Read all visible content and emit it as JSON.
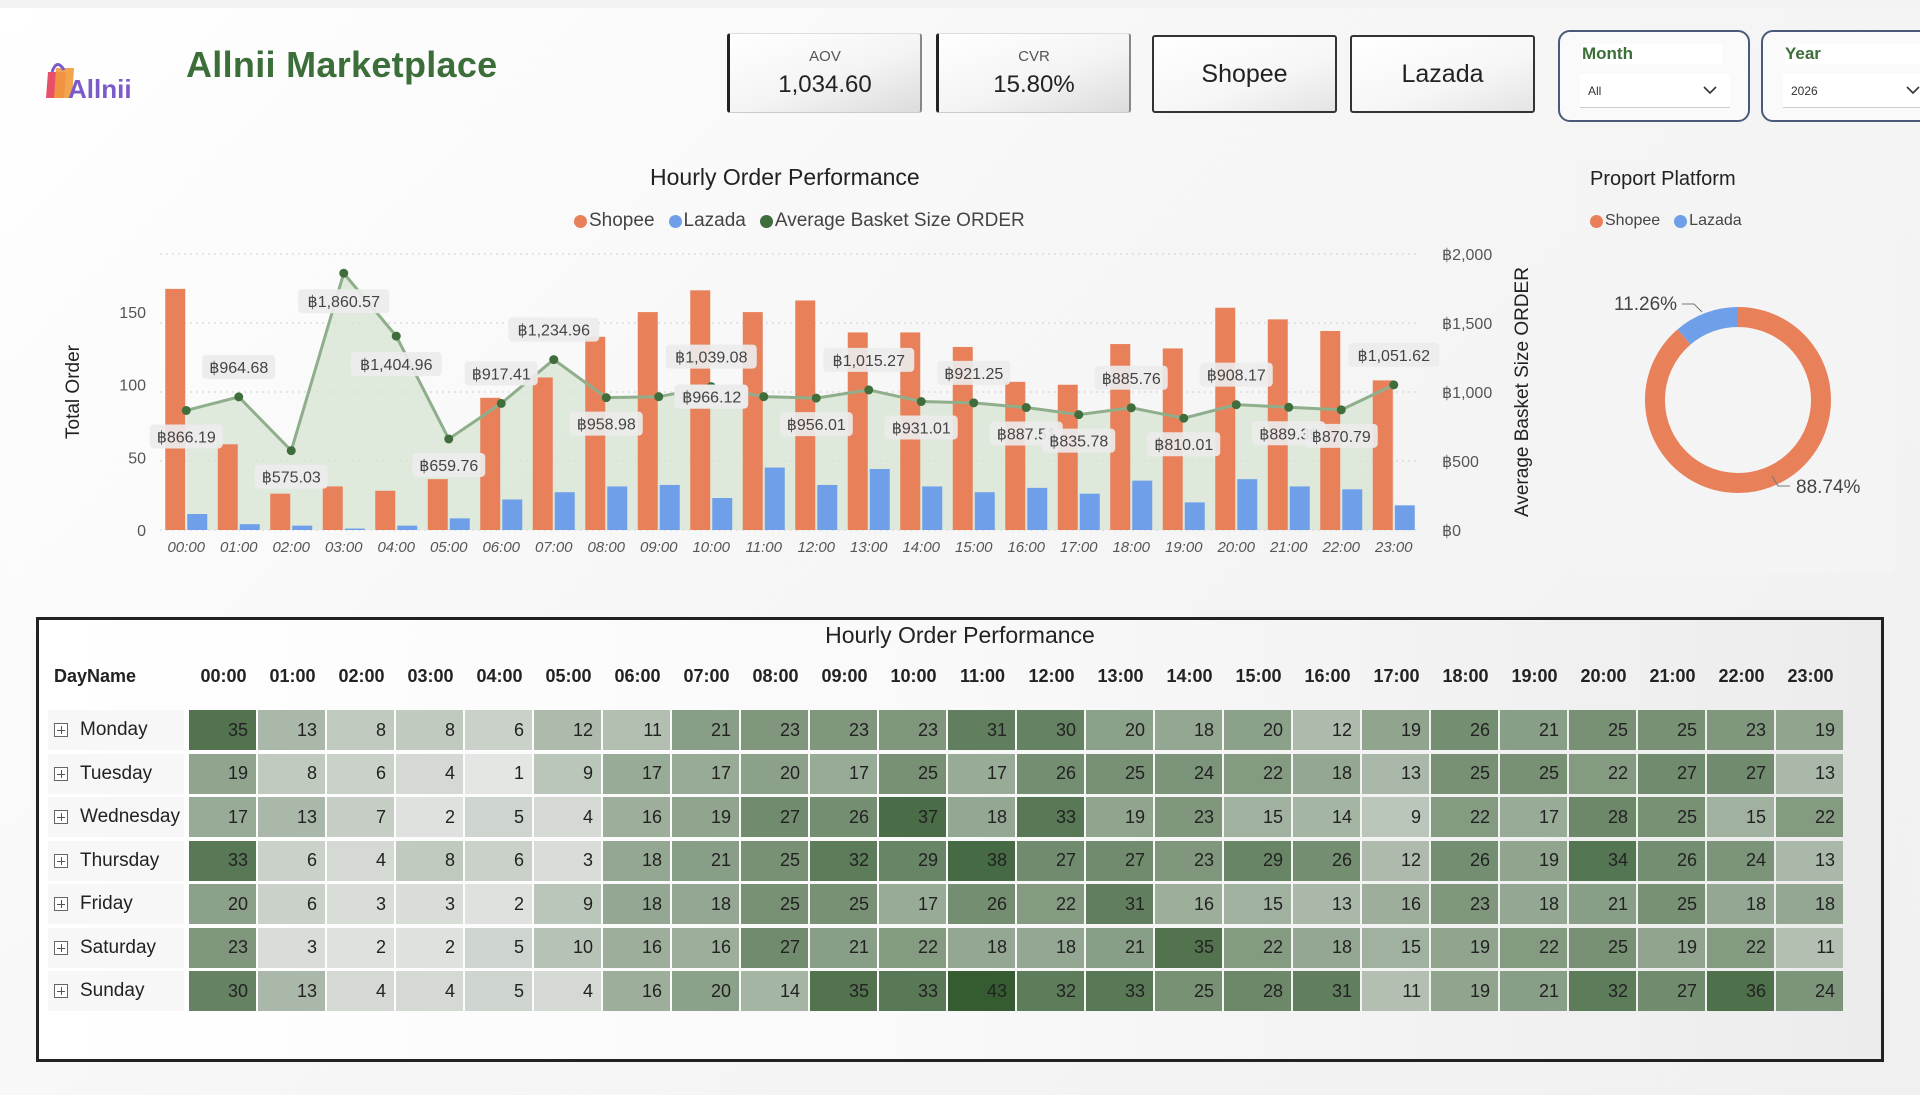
{
  "app": {
    "title": "Allnii Marketplace",
    "logo_text": "Allnii"
  },
  "kpis": [
    {
      "label": "AOV",
      "value": "1,034.60"
    },
    {
      "label": "CVR",
      "value": "15.80%"
    }
  ],
  "platform_buttons": [
    "Shopee",
    "Lazada"
  ],
  "slicers": [
    {
      "title": "Month",
      "value": "All"
    },
    {
      "title": "Year",
      "value": "2026"
    }
  ],
  "colors": {
    "shopee": "#E8805A",
    "lazada": "#6F9FE8",
    "basket": "#3F6E3C",
    "area": "#D6E4D2",
    "title_green": "#3C6E3A"
  },
  "combo_chart": {
    "title": "Hourly Order Performance",
    "legend": [
      "Shopee",
      "Lazada",
      "Average Basket Size ORDER"
    ]
  },
  "donut_chart": {
    "title": "Proport Platform",
    "legend": [
      "Shopee",
      "Lazada"
    ]
  },
  "matrix": {
    "title": "Hourly Order Performance",
    "row_header": "DayName",
    "columns": [
      "00:00",
      "01:00",
      "02:00",
      "03:00",
      "04:00",
      "05:00",
      "06:00",
      "07:00",
      "08:00",
      "09:00",
      "10:00",
      "11:00",
      "12:00",
      "13:00",
      "14:00",
      "15:00",
      "16:00",
      "17:00",
      "18:00",
      "19:00",
      "20:00",
      "21:00",
      "22:00",
      "23:00"
    ],
    "rows": [
      {
        "day": "Monday",
        "values": [
          35,
          13,
          8,
          8,
          6,
          12,
          11,
          21,
          23,
          23,
          23,
          31,
          30,
          20,
          18,
          20,
          12,
          19,
          26,
          21,
          25,
          25,
          23,
          19
        ]
      },
      {
        "day": "Tuesday",
        "values": [
          19,
          8,
          6,
          4,
          1,
          9,
          17,
          17,
          20,
          17,
          25,
          17,
          26,
          25,
          24,
          22,
          18,
          13,
          25,
          25,
          22,
          27,
          27,
          13
        ]
      },
      {
        "day": "Wednesday",
        "values": [
          17,
          13,
          7,
          2,
          5,
          4,
          16,
          19,
          27,
          26,
          37,
          18,
          33,
          19,
          23,
          15,
          14,
          9,
          22,
          17,
          28,
          25,
          15,
          22
        ]
      },
      {
        "day": "Thursday",
        "values": [
          33,
          6,
          4,
          8,
          6,
          3,
          18,
          21,
          25,
          32,
          29,
          38,
          27,
          27,
          23,
          29,
          26,
          12,
          26,
          19,
          34,
          26,
          24,
          13
        ]
      },
      {
        "day": "Friday",
        "values": [
          20,
          6,
          3,
          3,
          2,
          9,
          18,
          18,
          25,
          25,
          17,
          26,
          22,
          31,
          16,
          15,
          13,
          16,
          23,
          18,
          21,
          25,
          18,
          18
        ]
      },
      {
        "day": "Saturday",
        "values": [
          23,
          3,
          2,
          2,
          5,
          10,
          16,
          16,
          27,
          21,
          22,
          18,
          18,
          21,
          35,
          22,
          18,
          15,
          19,
          22,
          25,
          19,
          22,
          11
        ]
      },
      {
        "day": "Sunday",
        "values": [
          30,
          13,
          4,
          4,
          5,
          4,
          16,
          20,
          14,
          35,
          33,
          43,
          32,
          33,
          25,
          28,
          31,
          11,
          19,
          21,
          32,
          27,
          36,
          24
        ]
      }
    ]
  },
  "chart_data": [
    {
      "type": "bar",
      "title": "Hourly Order Performance",
      "xlabel": "",
      "ylabel": "Total Order",
      "y2label": "Average Basket Size ORDER",
      "ylim": [
        0,
        190
      ],
      "y2lim": [
        0,
        2000
      ],
      "yticks": [
        0,
        50,
        100,
        150
      ],
      "y2ticks": [
        "฿0",
        "฿500",
        "฿1,000",
        "฿1,500",
        "฿2,000"
      ],
      "y2tick_values": [
        0,
        500,
        1000,
        1500,
        2000
      ],
      "categories": [
        "00:00",
        "01:00",
        "02:00",
        "03:00",
        "04:00",
        "05:00",
        "06:00",
        "07:00",
        "08:00",
        "09:00",
        "10:00",
        "11:00",
        "12:00",
        "13:00",
        "14:00",
        "15:00",
        "16:00",
        "17:00",
        "18:00",
        "19:00",
        "20:00",
        "21:00",
        "22:00",
        "23:00"
      ],
      "series": [
        {
          "name": "Shopee",
          "type": "bar",
          "values": [
            166,
            59,
            25,
            30,
            27,
            35,
            91,
            105,
            133,
            150,
            165,
            150,
            158,
            136,
            136,
            126,
            102,
            100,
            128,
            125,
            153,
            145,
            137,
            103
          ]
        },
        {
          "name": "Lazada",
          "type": "bar",
          "values": [
            11,
            4,
            3,
            1,
            3,
            8,
            21,
            26,
            30,
            31,
            22,
            43,
            31,
            42,
            30,
            26,
            29,
            25,
            34,
            19,
            35,
            30,
            28,
            17
          ]
        },
        {
          "name": "Average Basket Size ORDER",
          "type": "line",
          "axis": "y2",
          "values": [
            866.19,
            964.68,
            575.03,
            1860.57,
            1404.96,
            659.76,
            917.41,
            1234.96,
            958.98,
            966.12,
            1039.08,
            966.12,
            956.01,
            1015.27,
            931.01,
            921.25,
            887.51,
            835.78,
            885.76,
            810.01,
            908.17,
            889.39,
            870.79,
            1051.62
          ],
          "labels": [
            "฿866.19",
            "฿964.68",
            "฿575.03",
            "฿1,860.57",
            "฿1,404.96",
            "฿659.76",
            "฿917.41",
            "฿1,234.96",
            "฿958.98",
            "฿966.12",
            "฿1,039.08",
            "฿966.12",
            "฿956.01",
            "฿1,015.27",
            "฿931.01",
            "฿921.25",
            "฿887.51",
            "฿835.78",
            "฿885.76",
            "฿810.01",
            "฿908.17",
            "฿889.39",
            "฿870.79",
            "฿1,051.62"
          ]
        }
      ],
      "grid": true,
      "legend": "top-center"
    },
    {
      "type": "pie",
      "title": "Proport Platform",
      "categories": [
        "Shopee",
        "Lazada"
      ],
      "values": [
        88.74,
        11.26
      ],
      "labels": [
        "88.74%",
        "11.26%"
      ],
      "legend": "top-left"
    }
  ]
}
